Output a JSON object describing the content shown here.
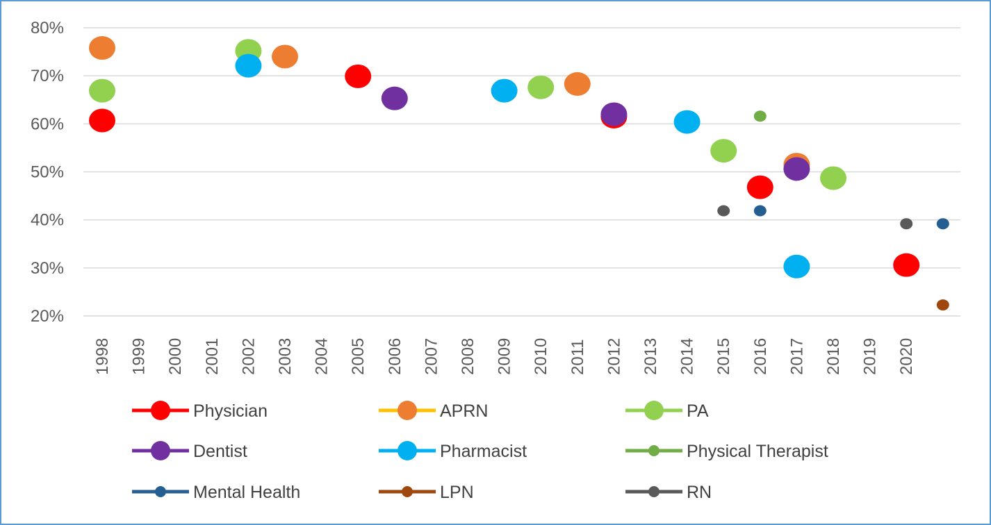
{
  "chart_data": {
    "type": "scatter",
    "title": "",
    "xlabel": "",
    "ylabel": "",
    "x_categories": [
      "1998",
      "1999",
      "2000",
      "2001",
      "2002",
      "2003",
      "2004",
      "2005",
      "2006",
      "2007",
      "2008",
      "2009",
      "2010",
      "2011",
      "2012",
      "2013",
      "2014",
      "2015",
      "2016",
      "2017",
      "2018",
      "2019",
      "2020"
    ],
    "y_ticks": [
      "20%",
      "30%",
      "40%",
      "50%",
      "60%",
      "70%",
      "80%"
    ],
    "ylim": [
      20,
      80
    ],
    "grid": "horizontal",
    "legend_position": "bottom",
    "series": [
      {
        "name": "Physician",
        "color": "#ff0000",
        "marker": "large",
        "points": [
          [
            0,
            60.7
          ],
          [
            7,
            69.9
          ],
          [
            14,
            61.5
          ],
          [
            18,
            46.8
          ],
          [
            22,
            30.6
          ]
        ]
      },
      {
        "name": "APRN",
        "color": "#ed7d31",
        "line_color": "#ffc000",
        "marker": "large",
        "points": [
          [
            0,
            75.8
          ],
          [
            5,
            74.0
          ],
          [
            13,
            68.3
          ],
          [
            19,
            51.5
          ]
        ]
      },
      {
        "name": "PA",
        "color": "#92d050",
        "marker": "large",
        "points": [
          [
            0,
            66.9
          ],
          [
            4,
            75.2
          ],
          [
            12,
            67.6
          ],
          [
            17,
            54.4
          ],
          [
            20,
            48.7
          ]
        ]
      },
      {
        "name": "Dentist",
        "color": "#7030a0",
        "marker": "large",
        "points": [
          [
            8,
            65.3
          ],
          [
            14,
            62.0
          ],
          [
            19,
            50.6
          ]
        ]
      },
      {
        "name": "Pharmacist",
        "color": "#00b0f0",
        "marker": "large",
        "points": [
          [
            4,
            72.1
          ],
          [
            11,
            66.9
          ],
          [
            16,
            60.4
          ],
          [
            19,
            30.3
          ]
        ]
      },
      {
        "name": "Physical Therapist",
        "color": "#70ad47",
        "marker": "small",
        "points": [
          [
            18,
            61.6
          ]
        ]
      },
      {
        "name": "Mental Health",
        "color": "#255e91",
        "marker": "small",
        "points": [
          [
            18,
            41.9
          ],
          [
            23,
            39.2
          ]
        ]
      },
      {
        "name": "LPN",
        "color": "#9e480e",
        "marker": "small",
        "points": [
          [
            23,
            22.3
          ]
        ]
      },
      {
        "name": "RN",
        "color": "#595959",
        "marker": "small",
        "points": [
          [
            17,
            41.9
          ],
          [
            22,
            39.2
          ]
        ]
      }
    ]
  }
}
